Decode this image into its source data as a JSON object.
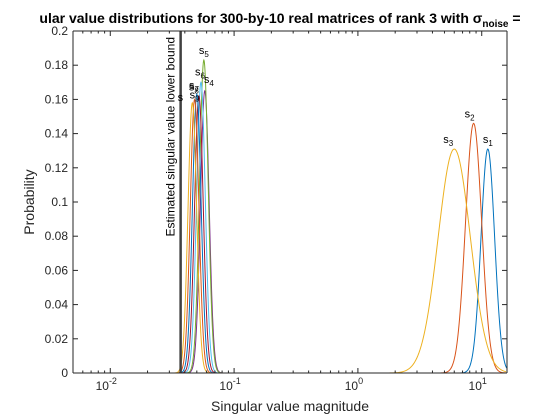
{
  "chart_data": {
    "type": "line",
    "title": "ular value distributions for 300-by-10 real matrices of rank 3 with σnoise =",
    "title_parts": [
      "ular value distributions for 300-by-10 real matrices of rank 3 with σ",
      "noise",
      " ="
    ],
    "xlabel": "Singular value magnitude",
    "ylabel": "Probability",
    "x_scale": "log",
    "xlim": [
      0.005,
      16
    ],
    "ylim": [
      0,
      0.2
    ],
    "x_ticks": [
      0.01,
      0.1,
      1,
      10
    ],
    "x_tick_labels": [
      [
        "10",
        "-2"
      ],
      [
        "10",
        "-1"
      ],
      [
        "10",
        "0"
      ],
      [
        "10",
        "1"
      ]
    ],
    "y_ticks": [
      0,
      0.02,
      0.04,
      0.06,
      0.08,
      0.1,
      0.12,
      0.14,
      0.16,
      0.18,
      0.2
    ],
    "y_tick_labels": [
      "0",
      "0.02",
      "0.04",
      "0.06",
      "0.08",
      "0.1",
      "0.12",
      "0.14",
      "0.16",
      "0.18",
      "0.2"
    ],
    "grid": false,
    "legend": "none",
    "vertical_line": {
      "x": 0.037,
      "label": "Estimated singular value lower bound",
      "color": "#404040"
    },
    "series": [
      {
        "name": "s1",
        "label": [
          "s",
          "1"
        ],
        "color": "#0072BD",
        "center": 11.2,
        "sigma": 0.055,
        "peak": 0.131
      },
      {
        "name": "s2",
        "label": [
          "s",
          "2"
        ],
        "color": "#D95319",
        "center": 8.6,
        "sigma": 0.065,
        "peak": 0.146
      },
      {
        "name": "s3",
        "label": [
          "s",
          "3"
        ],
        "color": "#EDB120",
        "center": 6.0,
        "sigma": 0.13,
        "peak": 0.131
      },
      {
        "name": "s4",
        "label": [
          "s",
          "4"
        ],
        "color": "#7E2F8E",
        "center": 0.058,
        "sigma": 0.035,
        "peak": 0.165
      },
      {
        "name": "s5",
        "label": [
          "s",
          "5"
        ],
        "color": "#77AC30",
        "center": 0.057,
        "sigma": 0.035,
        "peak": 0.183
      },
      {
        "name": "s6",
        "label": [
          "s",
          "6"
        ],
        "color": "#4DBEEE",
        "center": 0.054,
        "sigma": 0.035,
        "peak": 0.17
      },
      {
        "name": "s7",
        "label": [
          "s",
          "7"
        ],
        "color": "#A2142F",
        "center": 0.052,
        "sigma": 0.035,
        "peak": 0.162
      },
      {
        "name": "s8",
        "label": [
          "s",
          "8"
        ],
        "color": "#0072BD",
        "center": 0.05,
        "sigma": 0.035,
        "peak": 0.163
      },
      {
        "name": "s9",
        "label": [
          "s",
          "9"
        ],
        "color": "#D95319",
        "center": 0.048,
        "sigma": 0.035,
        "peak": 0.16
      },
      {
        "name": "s10",
        "label": [
          "s",
          ""
        ],
        "color": "#EDB120",
        "center": 0.046,
        "sigma": 0.035,
        "peak": 0.158
      }
    ]
  }
}
